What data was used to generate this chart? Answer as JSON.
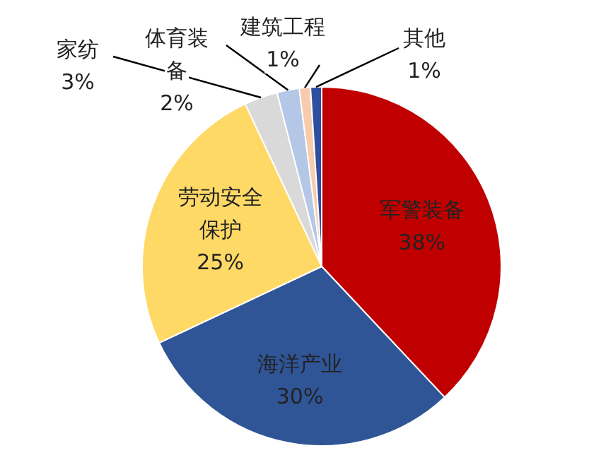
{
  "chart_data": {
    "type": "pie",
    "categories": [
      "军警装备",
      "海洋产业",
      "劳动安全保护",
      "家纺",
      "体育装备",
      "建筑工程",
      "其他"
    ],
    "values": [
      38,
      30,
      25,
      3,
      2,
      1,
      1
    ],
    "colors": [
      "#c00000",
      "#2f5597",
      "#ffd966",
      "#d9d9d9",
      "#b4c7e7",
      "#f8cbad",
      "#2e4fa0"
    ],
    "value_labels": [
      "38%",
      "30%",
      "25%",
      "3%",
      "2%",
      "1%",
      "1%"
    ],
    "legend": false
  }
}
